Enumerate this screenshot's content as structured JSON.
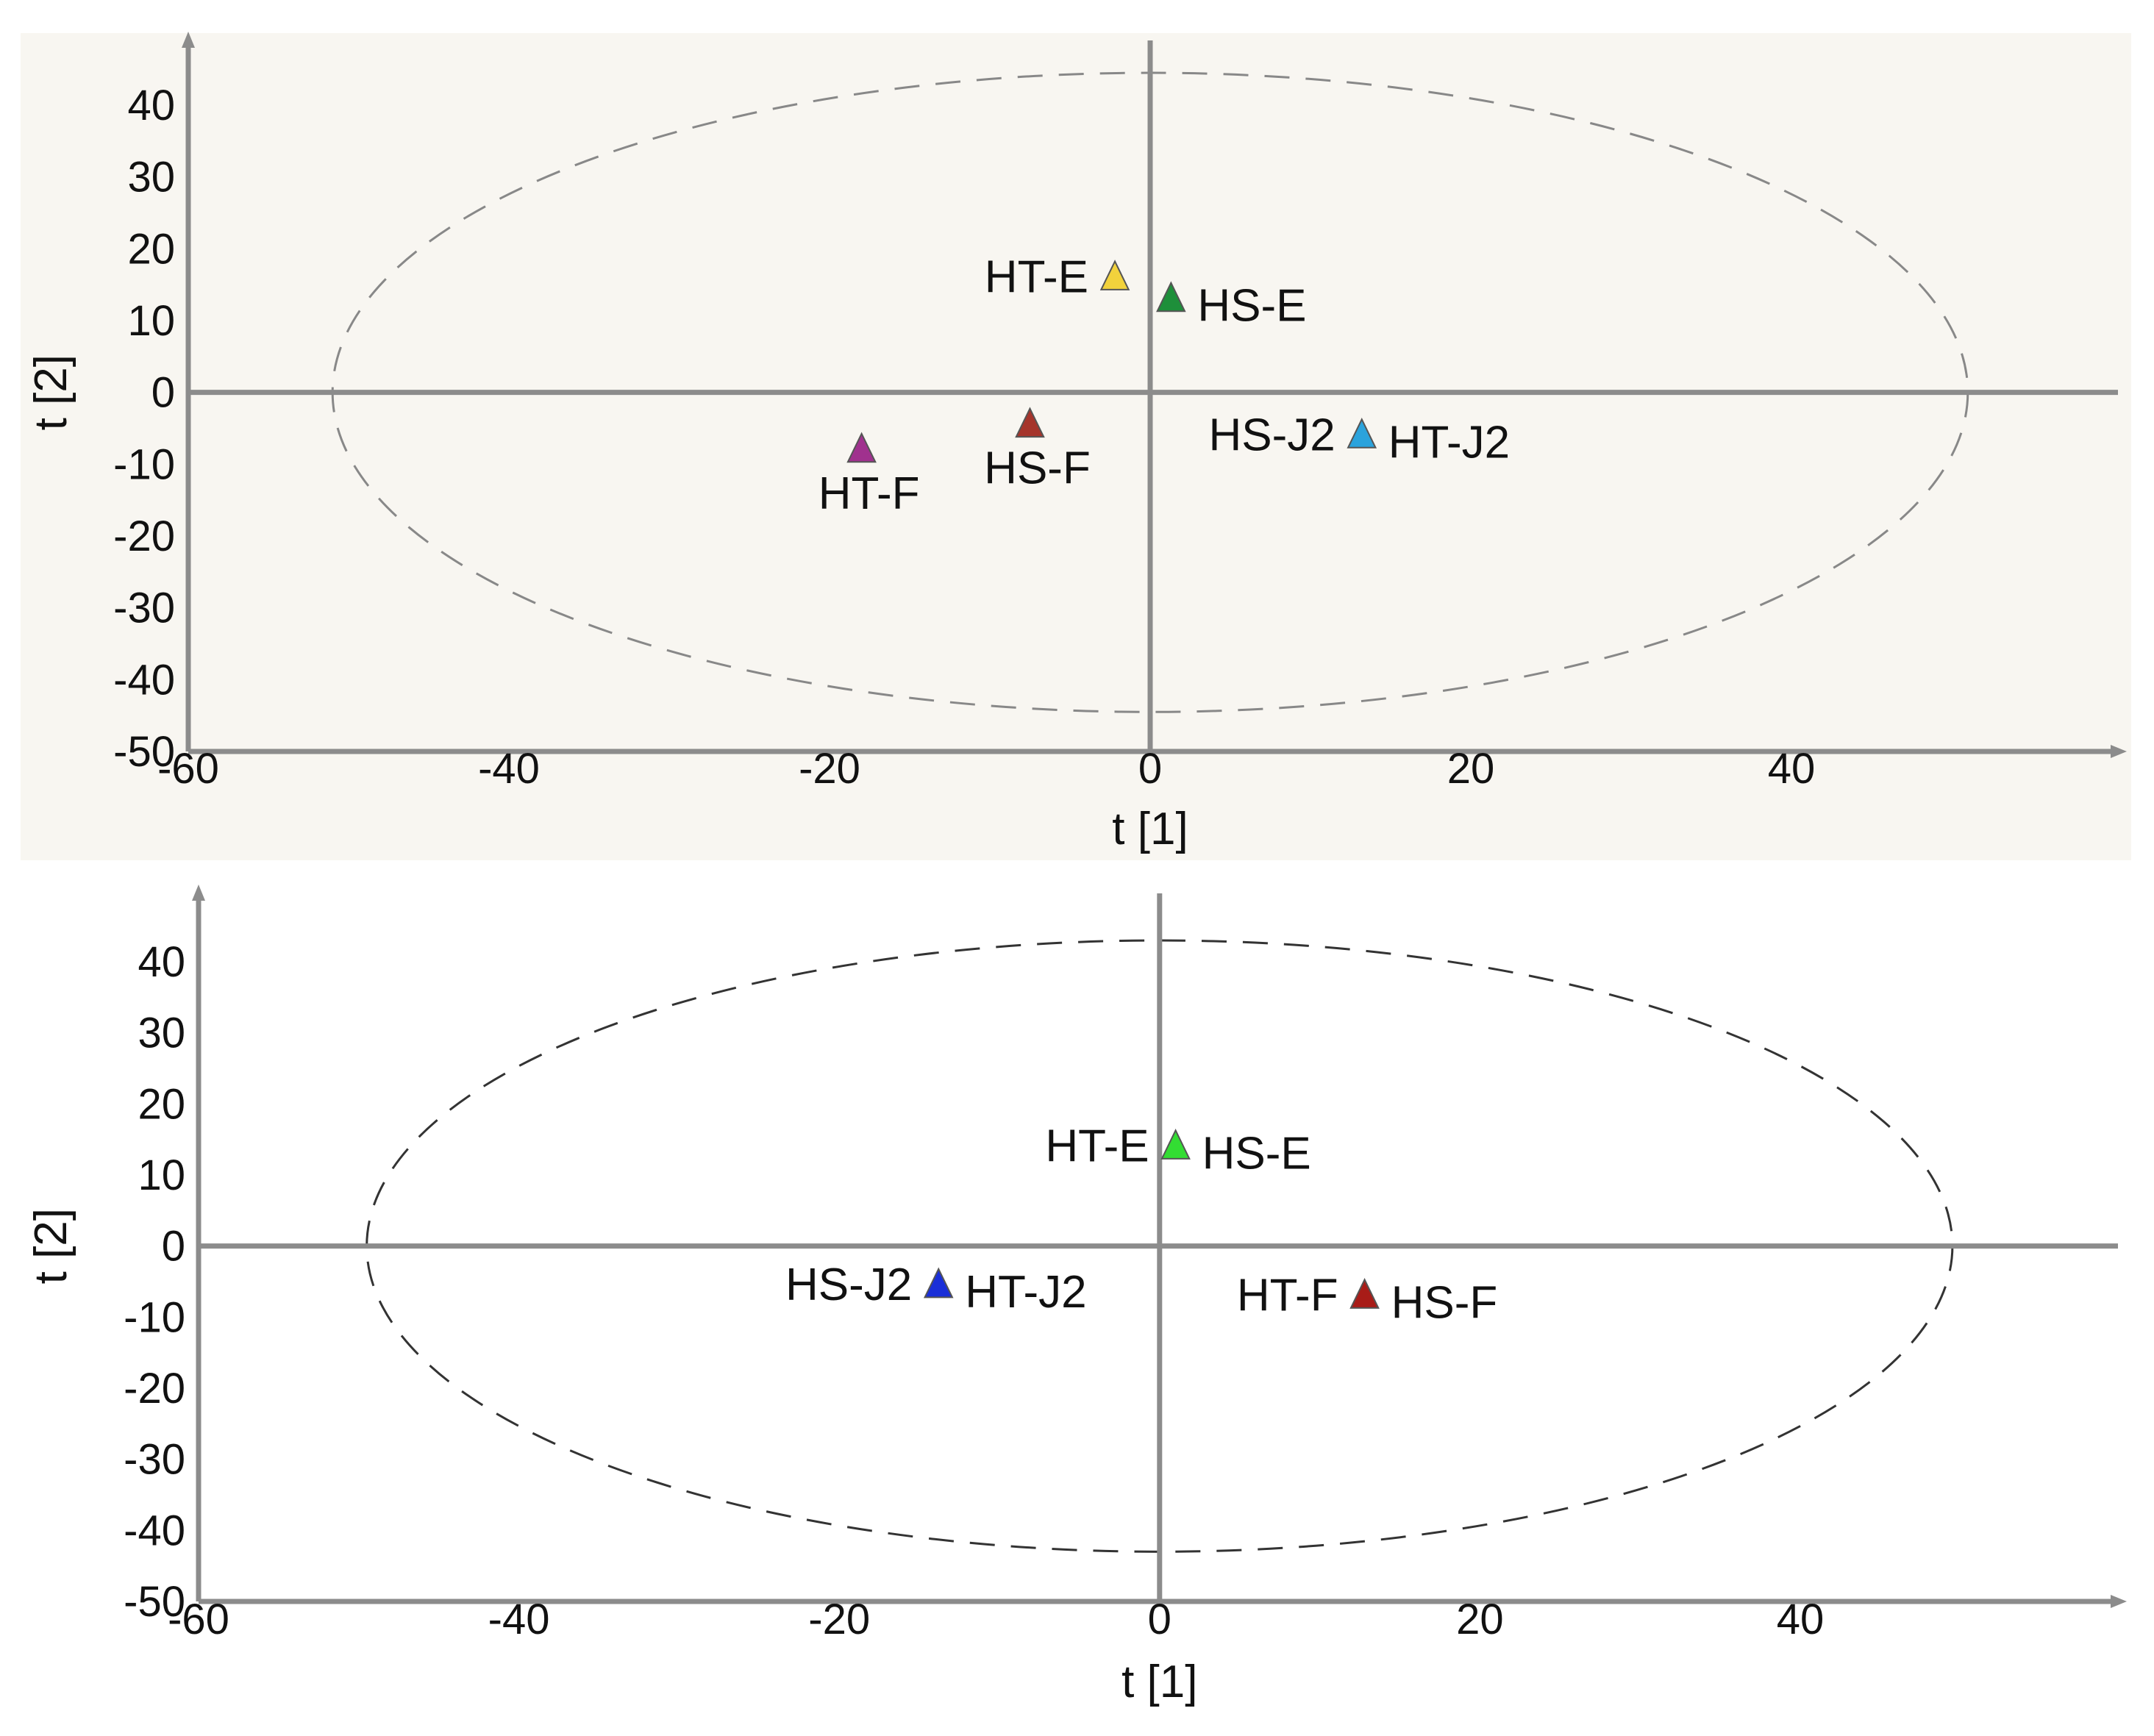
{
  "chart_data": [
    {
      "type": "scatter",
      "panel": "top",
      "xlabel": "t [1]",
      "ylabel": "t [2]",
      "xlim": [
        -60,
        60
      ],
      "ylim": [
        -50,
        47
      ],
      "x_ticks": [
        -60,
        -40,
        -20,
        0,
        20,
        40
      ],
      "y_ticks": [
        40,
        30,
        20,
        10,
        0,
        -10,
        -20,
        -30,
        -40,
        -50
      ],
      "grid": false,
      "background": "#f8f6f1",
      "ellipse": {
        "center": [
          0,
          0
        ],
        "radius_x": 51,
        "radius_y": 44.5,
        "style": "dashed",
        "color": "#888888"
      },
      "points": [
        {
          "label": "HT-E",
          "x": -2.2,
          "y": 16,
          "color": "#f2d23c",
          "label_side": "left"
        },
        {
          "label": "HS-E",
          "x": 1.3,
          "y": 13,
          "color": "#1e8f3a",
          "label_side": "right"
        },
        {
          "label": "HS-F",
          "x": -7.5,
          "y": -4.5,
          "color": "#a5342b",
          "label_side": "below"
        },
        {
          "label": "HT-F",
          "x": -18,
          "y": -8,
          "color": "#a0318e",
          "label_side": "below"
        },
        {
          "label": "HS-J2",
          "x": 13.2,
          "y": -6,
          "color": "#2ba3dc",
          "label_side": "left"
        },
        {
          "label": "HT-J2",
          "x": 13.2,
          "y": -6,
          "color": "#2ba3dc",
          "label_side": "right"
        }
      ]
    },
    {
      "type": "scatter",
      "panel": "bottom",
      "xlabel": "t [1]",
      "ylabel": "t [2]",
      "xlim": [
        -60,
        60
      ],
      "ylim": [
        -50,
        47
      ],
      "x_ticks": [
        -60,
        -40,
        -20,
        0,
        20,
        40
      ],
      "y_ticks": [
        40,
        30,
        20,
        10,
        0,
        -10,
        -20,
        -30,
        -40,
        -50
      ],
      "grid": false,
      "background": "#ffffff",
      "ellipse": {
        "center": [
          0,
          0
        ],
        "radius_x": 49.5,
        "radius_y": 43,
        "style": "dashed",
        "color": "#333333"
      },
      "points": [
        {
          "label": "HT-E",
          "x": 1,
          "y": 14,
          "color": "#33dd33",
          "label_side": "left"
        },
        {
          "label": "HS-E",
          "x": 1,
          "y": 14,
          "color": "#33dd33",
          "label_side": "right"
        },
        {
          "label": "HS-J2",
          "x": -13.8,
          "y": -5.5,
          "color": "#1a2fd8",
          "label_side": "left"
        },
        {
          "label": "HT-J2",
          "x": -13.8,
          "y": -5.5,
          "color": "#1a2fd8",
          "label_side": "right"
        },
        {
          "label": "HT-F",
          "x": 12.8,
          "y": -7,
          "color": "#a81c18",
          "label_side": "left"
        },
        {
          "label": "HS-F",
          "x": 12.8,
          "y": -7,
          "color": "#a81c18",
          "label_side": "right"
        }
      ]
    }
  ]
}
